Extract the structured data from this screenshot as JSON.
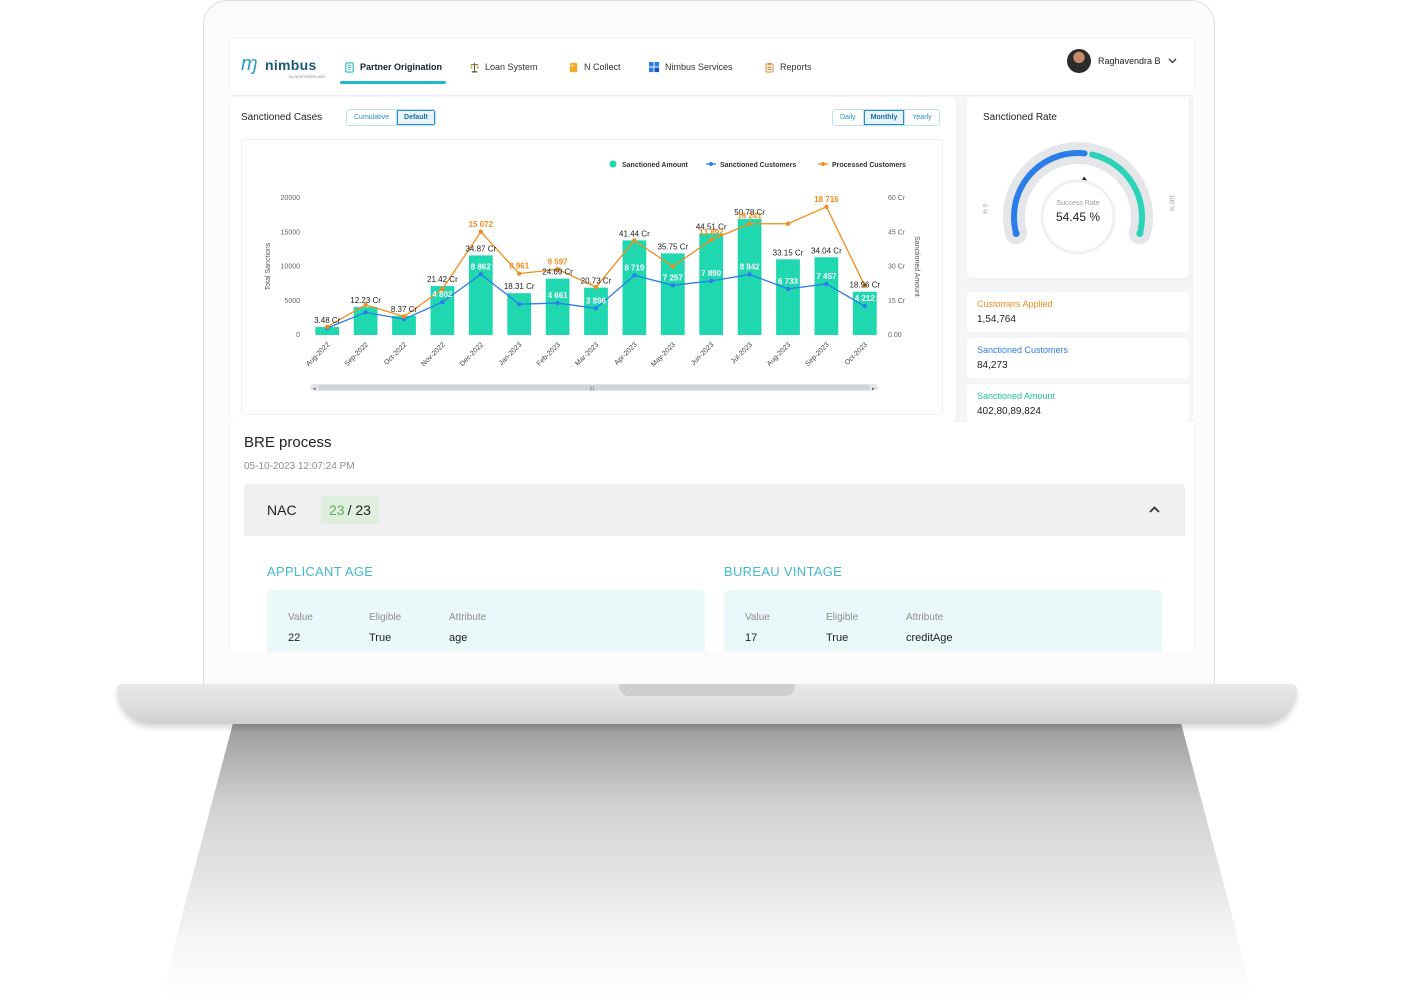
{
  "nav": {
    "brand": "nimbus",
    "brand_sub": "by NORTHERN ARC",
    "tabs": [
      {
        "label": "Partner Origination",
        "icon": "document-icon",
        "active": true
      },
      {
        "label": "Loan System",
        "icon": "scales-icon",
        "active": false
      },
      {
        "label": "N Collect",
        "icon": "folder-icon",
        "active": false
      },
      {
        "label": "Nimbus Services",
        "icon": "grid-icon",
        "active": false
      },
      {
        "label": "Reports",
        "icon": "clipboard-icon",
        "active": false
      }
    ],
    "user_name": "Raghavendra B"
  },
  "sanctioned_cases": {
    "title": "Sanctioned Cases",
    "mode_options": [
      "Cumulative",
      "Default"
    ],
    "mode_selected": "Default",
    "period_options": [
      "Daily",
      "Monthly",
      "Yearly"
    ],
    "period_selected": "Monthly"
  },
  "chart_data": {
    "type": "bar",
    "categories": [
      "Aug-2022",
      "Sep-2022",
      "Oct-2022",
      "Nov-2022",
      "Dec-2022",
      "Jan-2023",
      "Feb-2023",
      "Mar-2023",
      "Apr-2023",
      "May-2023",
      "Jun-2023",
      "Jul-2023",
      "Aug-2023",
      "Sep-2023",
      "Oct-2023"
    ],
    "legend": [
      "Sanctioned Amount",
      "Sanctioned Customers",
      "Processed Customers"
    ],
    "legend_placement": "top-right",
    "ylabel": "Total Sanctions",
    "y2label": "Sanctioned Amount",
    "ylim": [
      0,
      20000
    ],
    "y2lim": [
      0,
      60
    ],
    "yticks": [
      "0",
      "5000",
      "10000",
      "15000",
      "20000"
    ],
    "y2ticks": [
      "0.00",
      "15 Cr",
      "30 Cr",
      "45 Cr",
      "60 Cr"
    ],
    "series": [
      {
        "name": "Sanctioned Amount",
        "type": "bar",
        "axis": "right",
        "color": "#1fd8b0",
        "values": [
          3.48,
          12.23,
          8.37,
          21.42,
          34.87,
          18.31,
          24.69,
          20.73,
          41.44,
          35.75,
          44.51,
          50.78,
          33.15,
          34.04,
          18.96
        ],
        "labels": [
          "3.48 Cr",
          "12.23 Cr",
          "8.37 Cr",
          "21.42 Cr",
          "34.87 Cr",
          "18.31 Cr",
          "24.69 Cr",
          "20.73 Cr",
          "41.44 Cr",
          "35.75 Cr",
          "44.51 Cr",
          "50.78 Cr",
          "33.15 Cr",
          "34.04 Cr",
          "18.96 Cr"
        ]
      },
      {
        "name": "Sanctioned Customers",
        "type": "line",
        "axis": "left",
        "color": "#2b7de9",
        "values": [
          1000,
          3300,
          2300,
          4802,
          8862,
          4500,
          4661,
          3896,
          8719,
          7257,
          7890,
          8842,
          6733,
          7457,
          4212
        ],
        "labels": [
          "",
          "",
          "",
          "4 802",
          "8 862",
          "",
          "4 661",
          "3 896",
          "8 719",
          "7 257",
          "7 890",
          "8 842",
          "6 733",
          "7 457",
          "4 212"
        ]
      },
      {
        "name": "Processed Customers",
        "type": "line",
        "axis": "left",
        "color": "#f28c1e",
        "values": [
          1200,
          4400,
          2700,
          6700,
          15072,
          8961,
          9597,
          7000,
          13800,
          10000,
          13892,
          16241,
          16241,
          18716,
          7200
        ],
        "labels": [
          "",
          "",
          "",
          "",
          "15 072",
          "8 961",
          "9 597",
          "",
          "",
          "",
          "13 892",
          "16 241",
          "",
          "18 716",
          ""
        ]
      }
    ],
    "grid": false
  },
  "sanctioned_rate": {
    "title": "Sanctioned Rate",
    "center_label": "Success Rate",
    "value_text": "54.45 %",
    "value": 54.45,
    "min_label": "0 %",
    "max_label": "100 %",
    "colors": {
      "left": "#2b7de9",
      "right": "#2bd3b8"
    }
  },
  "stats": [
    {
      "label": "Customers Applied",
      "value": "1,54,764",
      "color": "#f28c1e"
    },
    {
      "label": "Sanctioned Customers",
      "value": "84,273",
      "color": "#2b7de9"
    },
    {
      "label": "Sanctioned Amount",
      "value": "402,80,89,824",
      "color": "#1fc39e"
    }
  ],
  "bre": {
    "title": "BRE process",
    "timestamp": "05-10-2023 12:07:24 PM",
    "group": {
      "label": "NAC",
      "passed": "23",
      "total": "/ 23"
    },
    "columns": {
      "value": "Value",
      "eligible": "Eligible",
      "attribute": "Attribute"
    },
    "rules": [
      {
        "heading": "APPLICANT AGE",
        "value": "22",
        "eligible": "True",
        "attribute": "age"
      },
      {
        "heading": "BUREAU VINTAGE",
        "value": "17",
        "eligible": "True",
        "attribute": "creditAge"
      }
    ]
  }
}
